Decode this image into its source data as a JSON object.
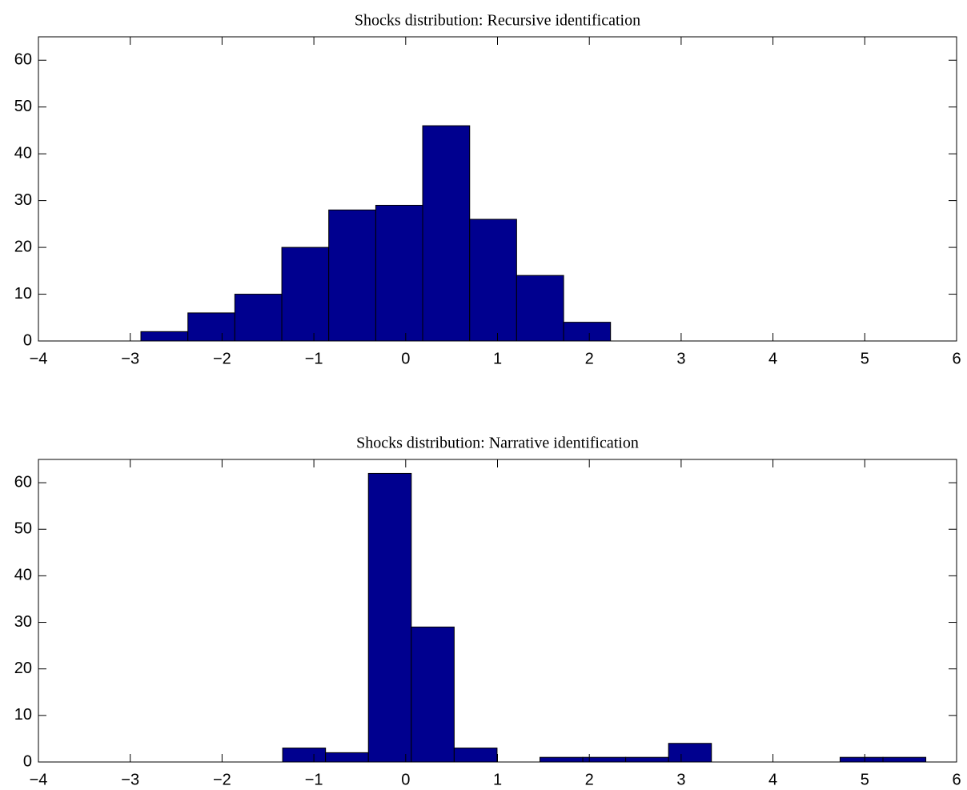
{
  "chart_data": [
    {
      "type": "histogram",
      "title": "Shocks distribution: Recursive identification",
      "color": "#00008f",
      "bins": [
        -2.884,
        -2.372,
        -1.861,
        -1.349,
        -0.838,
        -0.326,
        0.185,
        0.697,
        1.208,
        1.72,
        2.231
      ],
      "values": [
        2,
        6,
        10,
        20,
        28,
        29,
        46,
        26,
        14,
        4
      ],
      "xlim": [
        -4,
        6
      ],
      "ylim": [
        0,
        65
      ],
      "xticks": [
        {
          "value": -4,
          "label": "−4"
        },
        {
          "value": -3,
          "label": "−3"
        },
        {
          "value": -2,
          "label": "−2"
        },
        {
          "value": -1,
          "label": "−1"
        },
        0,
        1,
        2,
        3,
        4,
        5,
        6
      ],
      "yticks": [
        0,
        10,
        20,
        30,
        40,
        50,
        60
      ]
    },
    {
      "type": "histogram",
      "title": "Shocks distribution: Narrative identification",
      "color": "#00008f",
      "bins": [
        -1.34,
        -0.873,
        -0.406,
        0.061,
        0.528,
        0.995,
        1.462,
        1.929,
        2.396,
        2.863,
        3.33,
        3.797,
        4.264,
        4.731,
        5.198,
        5.665
      ],
      "values": [
        3,
        2,
        62,
        29,
        3,
        0,
        1,
        1,
        1,
        4,
        0,
        0,
        0,
        1,
        1
      ],
      "xlim": [
        -4,
        6
      ],
      "ylim": [
        0,
        65
      ],
      "xticks": [
        {
          "value": -4,
          "label": "−4"
        },
        {
          "value": -3,
          "label": "−3"
        },
        {
          "value": -2,
          "label": "−2"
        },
        {
          "value": -1,
          "label": "−1"
        },
        0,
        1,
        2,
        3,
        4,
        5,
        6
      ],
      "yticks": [
        0,
        10,
        20,
        30,
        40,
        50,
        60
      ]
    }
  ]
}
